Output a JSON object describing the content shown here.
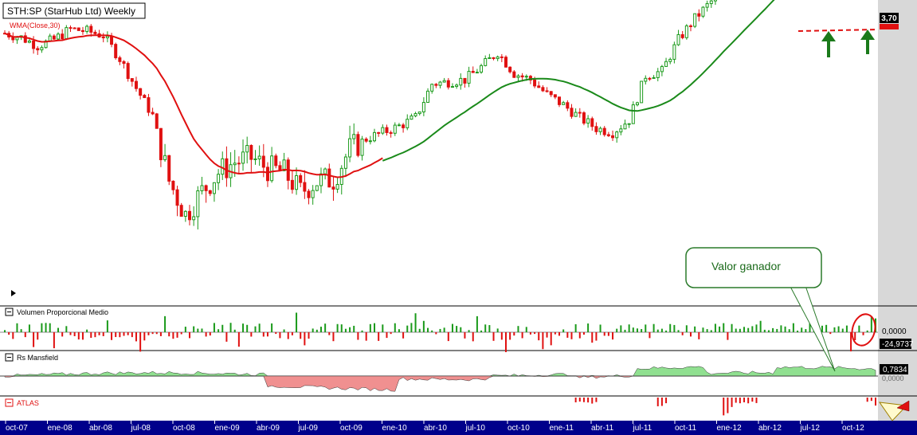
{
  "title": "STH:SP (StarHub Ltd) Weekly",
  "overlay_label": "WMA(Close,30)",
  "price_tag": "3,70",
  "callout_text": "Valor ganador",
  "colors": {
    "bull": "#1a9a1a",
    "bear": "#e01010",
    "wma_fast": "#e01010",
    "wma_slow": "#1a8a1a",
    "axis_bar": "#00008b",
    "mansfield_pos": "#90e090",
    "mansfield_neg": "#f09090",
    "callout_bg": "#ffffff",
    "callout_border": "#2a7a2a",
    "callout_text": "#1a6a1a",
    "scale_bg": "#d8d8d8"
  },
  "panels": {
    "volume": {
      "label": "Volumen Proporcional Medio",
      "value_top": "0,0000",
      "value_bottom": "-24,9737"
    },
    "mansfield": {
      "label": "Rs Mansfield",
      "value_top": "0,7834",
      "value_bottom": "0,0000"
    },
    "atlas": {
      "label": "ATLAS"
    }
  },
  "chart_data": {
    "type": "candlestick",
    "title": "STH:SP (StarHub Ltd) Weekly",
    "x_tick_labels": [
      "oct-07",
      "ene-08",
      "abr-08",
      "jul-08",
      "oct-08",
      "ene-09",
      "abr-09",
      "jul-09",
      "oct-09",
      "ene-10",
      "abr-10",
      "jul-10",
      "oct-10",
      "ene-11",
      "abr-11",
      "jul-11",
      "oct-11",
      "ene-12",
      "abr-12",
      "jul-12",
      "oct-12"
    ],
    "price_closes_monthly": [
      2.72,
      2.7,
      2.66,
      2.69,
      2.74,
      2.73,
      2.71,
      2.6,
      2.46,
      2.33,
      2.02,
      1.86,
      1.97,
      2.06,
      2.11,
      2.13,
      2.08,
      2.06,
      1.97,
      2.02,
      2.03,
      2.17,
      2.22,
      2.25,
      2.28,
      2.32,
      2.48,
      2.49,
      2.5,
      2.56,
      2.63,
      2.53,
      2.5,
      2.43,
      2.38,
      2.32,
      2.27,
      2.25,
      2.31,
      2.52,
      2.54,
      2.69,
      2.79,
      2.87,
      2.93,
      3.0,
      3.04,
      3.14,
      3.38,
      3.55,
      3.68,
      3.72,
      3.68,
      3.7
    ],
    "last_price": 3.7,
    "overlays": [
      "WMA(Close,30)"
    ],
    "support_line": {
      "value": 3.64,
      "style": "dashed",
      "color": "#e01010"
    },
    "annotations": [
      "two green up-arrows under the support line",
      "callout: Valor ganador",
      "red circle on last volume bars"
    ]
  }
}
